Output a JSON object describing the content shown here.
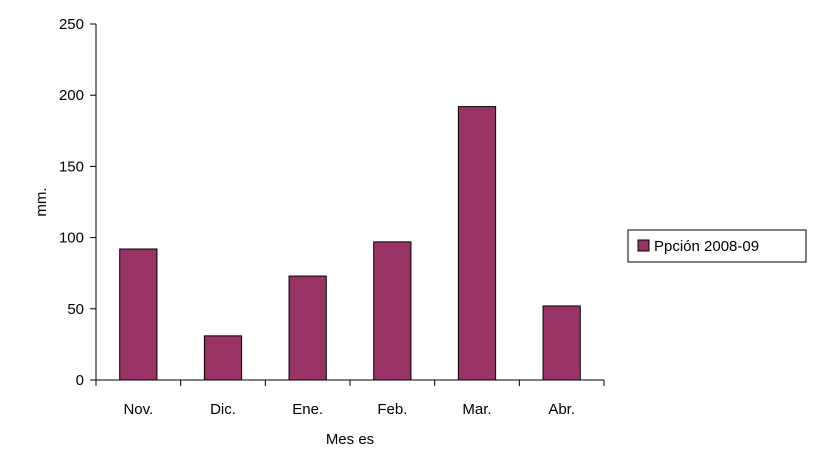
{
  "chart_data": {
    "type": "bar",
    "title": "",
    "xlabel": "Mes es",
    "ylabel": "mm.",
    "categories": [
      "Nov.",
      "Dic.",
      "Ene.",
      "Feb.",
      "Mar.",
      "Abr."
    ],
    "series": [
      {
        "name": "Ppción 2008-09",
        "values": [
          92,
          31,
          73,
          97,
          192,
          52
        ]
      }
    ],
    "ylim": [
      0,
      250
    ],
    "yticks": [
      0,
      50,
      100,
      150,
      200,
      250
    ],
    "grid": false,
    "legend_position": "right",
    "bar_color": "#993366",
    "bar_edge_color": "#000000"
  }
}
